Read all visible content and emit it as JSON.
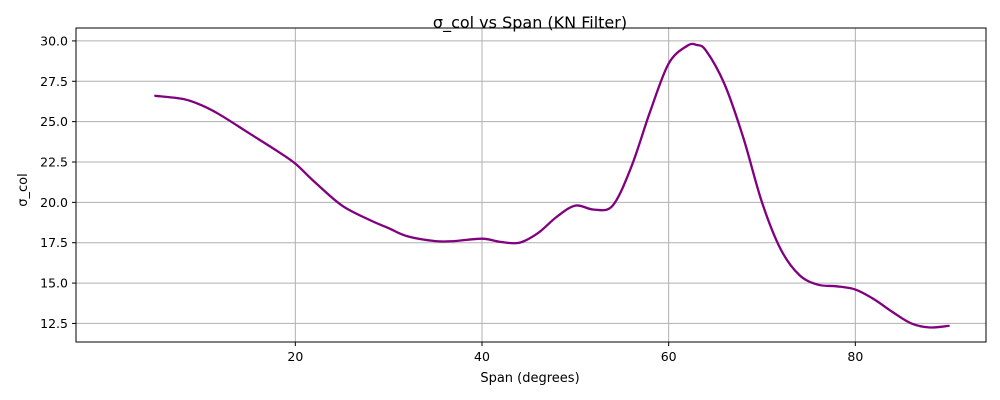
{
  "chart_data": {
    "type": "line",
    "title": "σ_col vs Span (KN Filter)",
    "xlabel": "Span (degrees)",
    "ylabel": "σ_col",
    "xlim": [
      -3.5,
      94
    ],
    "ylim": [
      11.35,
      30.8
    ],
    "x_ticks": [
      20,
      40,
      60,
      80
    ],
    "x_tick_labels": [
      "20",
      "40",
      "60",
      "80"
    ],
    "y_ticks": [
      12.5,
      15.0,
      17.5,
      20.0,
      22.5,
      25.0,
      27.5,
      30.0
    ],
    "y_tick_labels": [
      "12.5",
      "15.0",
      "17.5",
      "20.0",
      "22.5",
      "25.0",
      "27.5",
      "30.0"
    ],
    "grid": true,
    "series": [
      {
        "color": "#800080",
        "x": [
          5,
          8,
          10,
          12,
          15,
          18,
          20,
          22,
          25,
          28,
          30,
          32,
          35,
          37,
          40,
          42,
          44,
          46,
          48,
          50,
          52,
          54,
          56,
          58,
          60,
          62,
          63,
          64,
          66,
          68,
          70,
          72,
          74,
          76,
          78,
          80,
          82,
          84,
          86,
          88,
          90
        ],
        "y": [
          26.6,
          26.4,
          26.0,
          25.4,
          24.3,
          23.2,
          22.4,
          21.3,
          19.8,
          18.9,
          18.4,
          17.9,
          17.6,
          17.6,
          17.75,
          17.55,
          17.5,
          18.1,
          19.1,
          19.8,
          19.55,
          19.8,
          22.2,
          25.6,
          28.6,
          29.7,
          29.75,
          29.4,
          27.3,
          24.0,
          20.0,
          17.1,
          15.5,
          14.9,
          14.8,
          14.6,
          14.0,
          13.2,
          12.5,
          12.25,
          12.35
        ]
      }
    ]
  }
}
